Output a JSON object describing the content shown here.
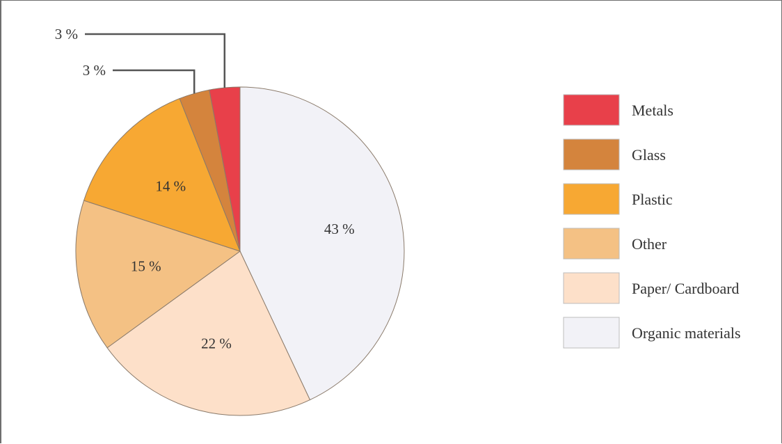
{
  "chart_data": {
    "type": "pie",
    "title": "",
    "labels": [
      "Organic materials",
      "Paper/ Cardboard",
      "Other",
      "Plastic",
      "Glass",
      "Metals"
    ],
    "values": [
      43,
      22,
      15,
      14,
      3,
      3
    ],
    "value_labels": [
      "43 %",
      "22 %",
      "15 %",
      "14 %",
      "3 %",
      "3 %"
    ],
    "colors": [
      "#f2f2f7",
      "#fde0c9",
      "#f4c184",
      "#f7a833",
      "#d4843d",
      "#e8404a"
    ],
    "start": "12 o'clock",
    "direction": "clockwise",
    "small_slices_use_callout_lines": true,
    "legend": {
      "position": "right",
      "order": [
        "Metals",
        "Glass",
        "Plastic",
        "Other",
        "Paper/ Cardboard",
        "Organic materials"
      ]
    }
  }
}
